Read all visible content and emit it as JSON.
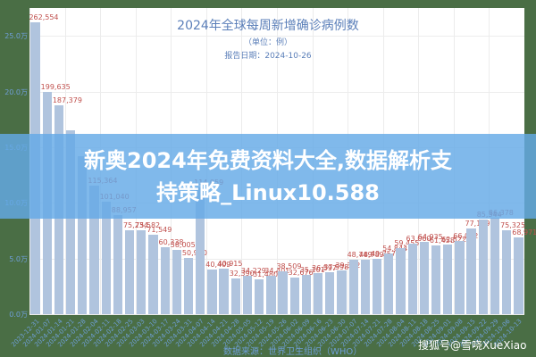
{
  "header": {
    "title": "2024年全球每周新增确诊病例数",
    "unit": "（单位：例）",
    "report_date": "报告日期：2024-10-26"
  },
  "footer": {
    "source": "数据来源：世界卫生组织（WHO）",
    "watermark": "搜狐号@雪哓XueXiao"
  },
  "banner": {
    "line1": "新奥2024年免费资料大全,数据解析支",
    "line2": "持策略_Linux10.588"
  },
  "colors": {
    "bar": "#b0c4de",
    "value_label": "#c0504d",
    "axis_text": "#6f9fd8",
    "title": "#5b7fb9",
    "outer_background": "#4a6e45",
    "banner": "#64aae6"
  },
  "chart_data": {
    "type": "bar",
    "title": "2024年全球每周新增确诊病例数",
    "subtitle": "（单位：例）",
    "annotation": "报告日期：2024-10-26",
    "xlabel": "",
    "ylabel": "",
    "ylim": [
      0,
      275000
    ],
    "yticks": [
      "0.0万",
      "5.0万",
      "10.0万",
      "15.0万",
      "20.0万",
      "25.0万"
    ],
    "grid": true,
    "legend": "none",
    "categories": [
      "2023-12-31",
      "2024-01-07",
      "2024-01-14",
      "2024-01-21",
      "2024-01-28",
      "2024-02-04",
      "2024-02-11",
      "2024-02-18",
      "2024-02-25",
      "2024-03-03",
      "2024-03-10",
      "2024-03-17",
      "2024-03-24",
      "2024-03-31",
      "2024-04-07",
      "2024-04-14",
      "2024-04-21",
      "2024-04-28",
      "2024-05-05",
      "2024-05-12",
      "2024-05-19",
      "2024-05-26",
      "2024-06-02",
      "2024-06-09",
      "2024-06-16",
      "2024-06-23",
      "2024-06-30",
      "2024-07-07",
      "2024-07-14",
      "2024-07-21",
      "2024-07-28",
      "2024-08-04",
      "2024-08-11",
      "2024-08-18",
      "2024-08-25",
      "2024-09-01",
      "2024-09-08",
      "2024-09-15",
      "2024-09-22",
      "2024-09-29",
      "2024-10-06",
      "2024-10-13"
    ],
    "values": [
      262554,
      199635,
      187379,
      165000,
      142000,
      115364,
      101040,
      88957,
      75234,
      75582,
      71549,
      60338,
      58005,
      50910,
      114059,
      40409,
      40915,
      32390,
      34229,
      31480,
      34401,
      38509,
      32676,
      35101,
      36597,
      37598,
      39352,
      48749,
      48789,
      49757,
      54844,
      59455,
      63060,
      64935,
      61458,
      62522,
      66012,
      77169,
      85344,
      86378,
      75325,
      68971
    ],
    "labels": [
      "262,554",
      "199,635",
      "187,379",
      "",
      "",
      "115,364",
      "101,040",
      "88,957",
      "75,234",
      "75,582",
      "71,549",
      "60,338",
      "58,005",
      "50,910",
      "114,059",
      "40,409",
      "40,915",
      "32,390",
      "34,229",
      "31,480",
      "34,401",
      "38,509",
      "32,676",
      "35,101",
      "36,597",
      "37,598",
      "39,352",
      "48,749",
      "48,789",
      "49,757",
      "54,844",
      "59,455",
      "63,060",
      "64,935",
      "61,458",
      "62,522",
      "66,012",
      "77,169",
      "85,344",
      "86,378",
      "75,325",
      "68,971"
    ]
  }
}
